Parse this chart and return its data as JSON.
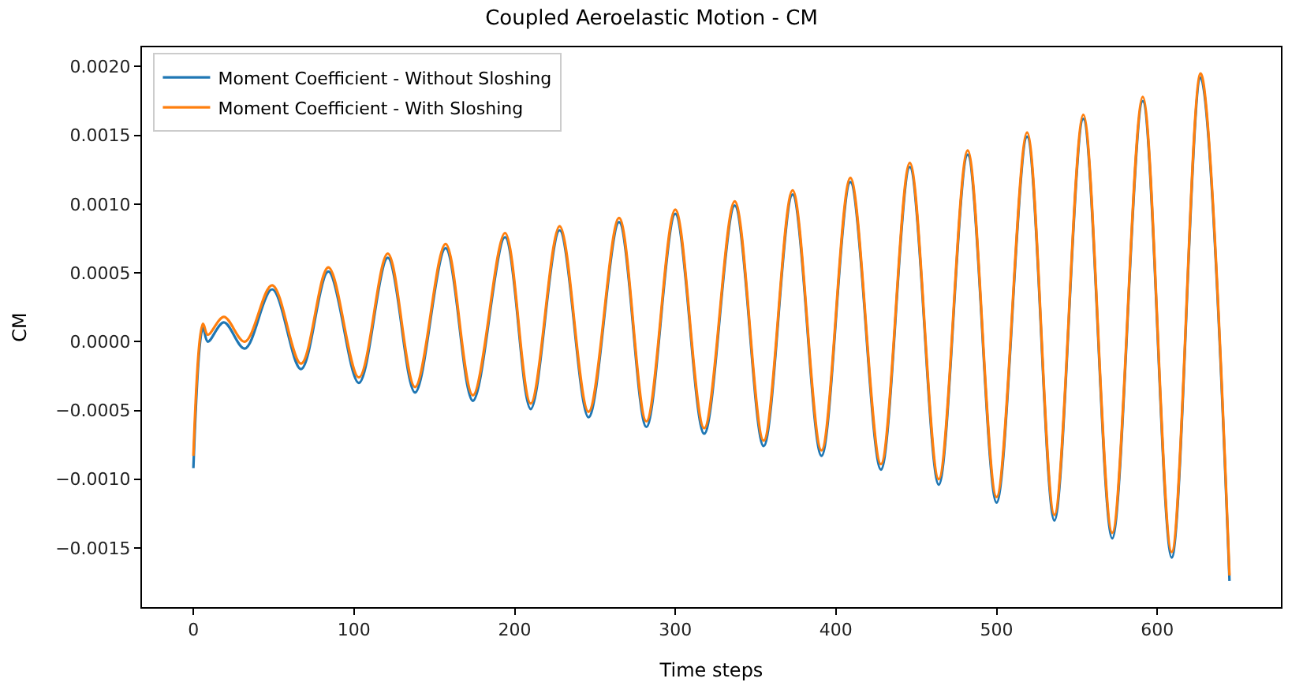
{
  "chart_data": {
    "type": "line",
    "title": "Coupled Aeroelastic Motion - CM",
    "xlabel": "Time steps",
    "ylabel": "CM",
    "x": [
      0,
      6,
      9,
      19,
      32,
      49,
      67,
      84,
      103,
      121,
      138,
      157,
      174,
      194,
      210,
      228,
      246,
      265,
      282,
      300,
      318,
      337,
      355,
      373,
      391,
      409,
      428,
      446,
      464,
      482,
      500,
      519,
      536,
      554,
      572,
      591,
      609,
      627,
      645
    ],
    "series": [
      {
        "name": "Moment Coefficient - Without Sloshing",
        "color": "#1f77b4",
        "values": [
          -0.00092,
          0.0001,
          0.0,
          0.00014,
          -5e-05,
          0.00038,
          -0.0002,
          0.00051,
          -0.0003,
          0.00061,
          -0.00037,
          0.00068,
          -0.00043,
          0.00076,
          -0.00049,
          0.00081,
          -0.00055,
          0.00087,
          -0.00062,
          0.00093,
          -0.00067,
          0.00099,
          -0.00076,
          0.00107,
          -0.00083,
          0.00116,
          -0.00093,
          0.00127,
          -0.00104,
          0.00136,
          -0.00117,
          0.00149,
          -0.0013,
          0.00162,
          -0.00143,
          0.00175,
          -0.00157,
          0.00192,
          -0.00174
        ]
      },
      {
        "name": "Moment Coefficient - With Sloshing",
        "color": "#ff7f0e",
        "values": [
          -0.00083,
          0.00013,
          5e-05,
          0.00018,
          0.0,
          0.00041,
          -0.00016,
          0.00054,
          -0.00026,
          0.00064,
          -0.00033,
          0.00071,
          -0.00039,
          0.00079,
          -0.00045,
          0.00084,
          -0.00051,
          0.0009,
          -0.00058,
          0.00096,
          -0.00063,
          0.00102,
          -0.00072,
          0.0011,
          -0.00079,
          0.00119,
          -0.00089,
          0.0013,
          -0.001,
          0.00139,
          -0.00113,
          0.00152,
          -0.00126,
          0.00165,
          -0.00139,
          0.00178,
          -0.00153,
          0.00195,
          -0.0017
        ]
      }
    ],
    "xlim": [
      -32,
      677
    ],
    "xticks": [
      0,
      100,
      200,
      300,
      400,
      500,
      600
    ],
    "ylim": [
      -0.00193,
      0.00214
    ],
    "yticks": [
      {
        "value": -0.0015,
        "label": "−0.0015"
      },
      {
        "value": -0.001,
        "label": "−0.0010"
      },
      {
        "value": -0.0005,
        "label": "−0.0005"
      },
      {
        "value": 0,
        "label": "0.0000"
      },
      {
        "value": 0.0005,
        "label": "0.0005"
      },
      {
        "value": 0.001,
        "label": "0.0010"
      },
      {
        "value": 0.0015,
        "label": "0.0015"
      },
      {
        "value": 0.002,
        "label": "0.0020"
      }
    ],
    "legend": "top left",
    "marker": "none",
    "line_style": "solid"
  }
}
